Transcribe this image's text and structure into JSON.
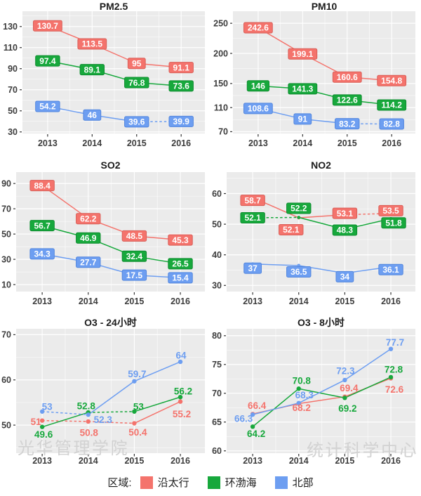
{
  "colors": {
    "red": {
      "fill": "#F4736C",
      "stroke": "#D95F58"
    },
    "green": {
      "fill": "#17A83C",
      "stroke": "#0E8C2F"
    },
    "blue": {
      "fill": "#6D9EF1",
      "stroke": "#5286DE"
    }
  },
  "legend": {
    "title": "区域:",
    "position": "bottom",
    "items": [
      {
        "label": "沿太行",
        "color": "red"
      },
      {
        "label": "环渤海",
        "color": "green"
      },
      {
        "label": "北部",
        "color": "blue"
      }
    ]
  },
  "watermarks": [
    {
      "text": "光华管理学院",
      "position": "bottom-left"
    },
    {
      "text": "统计科学中心",
      "position": "bottom-right"
    }
  ],
  "chart_data": [
    {
      "type": "line",
      "title": "PM2.5",
      "xlabel": "",
      "ylabel": "",
      "categories": [
        "2013",
        "2014",
        "2015",
        "2016"
      ],
      "yticks": [
        30,
        50,
        70,
        90,
        110,
        130
      ],
      "ylim": [
        28.5,
        144.5
      ],
      "grid": true,
      "label_style": "box",
      "series": [
        {
          "name": "沿太行",
          "color": "red",
          "values": [
            130.7,
            113.5,
            95,
            91.1
          ],
          "dashed_segments": [
            false,
            false,
            false
          ],
          "label_offsets": [
            [
              0,
              0
            ],
            [
              0,
              0
            ],
            [
              0,
              0
            ],
            [
              0,
              0
            ]
          ]
        },
        {
          "name": "环渤海",
          "color": "green",
          "values": [
            97.4,
            89.1,
            76.8,
            73.6
          ],
          "dashed_segments": [
            false,
            false,
            false
          ],
          "label_offsets": [
            [
              0,
              0
            ],
            [
              0,
              0
            ],
            [
              0,
              0
            ],
            [
              0,
              0
            ]
          ]
        },
        {
          "name": "北部",
          "color": "blue",
          "values": [
            54.2,
            46,
            39.6,
            39.9
          ],
          "dashed_segments": [
            false,
            false,
            true
          ],
          "label_offsets": [
            [
              0,
              0
            ],
            [
              0,
              0
            ],
            [
              0,
              0
            ],
            [
              0,
              0
            ]
          ]
        }
      ]
    },
    {
      "type": "line",
      "title": "PM10",
      "xlabel": "",
      "ylabel": "",
      "categories": [
        "2013",
        "2014",
        "2015",
        "2016"
      ],
      "yticks": [
        70,
        110,
        150,
        200,
        250
      ],
      "ylim": [
        67,
        270
      ],
      "grid": true,
      "label_style": "box",
      "series": [
        {
          "name": "沿太行",
          "color": "red",
          "values": [
            242.6,
            199.1,
            160.6,
            154.8
          ],
          "dashed_segments": [
            false,
            false,
            false
          ],
          "label_offsets": [
            [
              0,
              0
            ],
            [
              0,
              0
            ],
            [
              0,
              0
            ],
            [
              0,
              0
            ]
          ]
        },
        {
          "name": "环渤海",
          "color": "green",
          "values": [
            146,
            141.3,
            122.6,
            114.2
          ],
          "dashed_segments": [
            false,
            false,
            false
          ],
          "label_offsets": [
            [
              0,
              0
            ],
            [
              0,
              0
            ],
            [
              0,
              0
            ],
            [
              0,
              0
            ]
          ]
        },
        {
          "name": "北部",
          "color": "blue",
          "values": [
            108.6,
            91,
            83.2,
            82.8
          ],
          "dashed_segments": [
            false,
            false,
            true
          ],
          "label_offsets": [
            [
              0,
              0
            ],
            [
              0,
              0
            ],
            [
              0,
              0
            ],
            [
              0,
              0
            ]
          ]
        }
      ]
    },
    {
      "type": "line",
      "title": "SO2",
      "xlabel": "",
      "ylabel": "",
      "categories": [
        "2013",
        "2014",
        "2015",
        "2016"
      ],
      "yticks": [
        10,
        30,
        50,
        70,
        90
      ],
      "ylim": [
        4.5,
        99
      ],
      "grid": true,
      "label_style": "box",
      "series": [
        {
          "name": "沿太行",
          "color": "red",
          "values": [
            88.4,
            62.2,
            48.5,
            45.3
          ],
          "dashed_segments": [
            false,
            false,
            false
          ],
          "label_offsets": [
            [
              0,
              0
            ],
            [
              0,
              0
            ],
            [
              0,
              0
            ],
            [
              0,
              0
            ]
          ]
        },
        {
          "name": "环渤海",
          "color": "green",
          "values": [
            56.7,
            46.9,
            32.4,
            26.5
          ],
          "dashed_segments": [
            false,
            false,
            false
          ],
          "label_offsets": [
            [
              0,
              0
            ],
            [
              0,
              0
            ],
            [
              0,
              0
            ],
            [
              0,
              0
            ]
          ]
        },
        {
          "name": "北部",
          "color": "blue",
          "values": [
            34.3,
            27.7,
            17.5,
            15.4
          ],
          "dashed_segments": [
            false,
            false,
            false
          ],
          "label_offsets": [
            [
              0,
              0
            ],
            [
              0,
              0
            ],
            [
              0,
              0
            ],
            [
              0,
              0
            ]
          ]
        }
      ]
    },
    {
      "type": "line",
      "title": "NO2",
      "xlabel": "",
      "ylabel": "",
      "categories": [
        "2013",
        "2014",
        "2015",
        "2016"
      ],
      "yticks": [
        30,
        40,
        50,
        60
      ],
      "ylim": [
        28,
        67
      ],
      "grid": true,
      "label_style": "box",
      "series": [
        {
          "name": "沿太行",
          "color": "red",
          "values": [
            58.7,
            52.1,
            53.1,
            53.5
          ],
          "dashed_segments": [
            false,
            false,
            true
          ],
          "label_offsets": [
            [
              0,
              4
            ],
            [
              -11,
              17
            ],
            [
              0,
              -2
            ],
            [
              0,
              -4
            ]
          ]
        },
        {
          "name": "环渤海",
          "color": "green",
          "values": [
            52.1,
            52.2,
            48.3,
            51.8
          ],
          "dashed_segments": [
            true,
            false,
            false
          ],
          "label_offsets": [
            [
              0,
              0
            ],
            [
              0,
              -13
            ],
            [
              0,
              1
            ],
            [
              4,
              6
            ]
          ]
        },
        {
          "name": "北部",
          "color": "blue",
          "values": [
            37,
            36.5,
            34,
            36.1
          ],
          "dashed_segments": [
            false,
            false,
            false
          ],
          "label_offsets": [
            [
              0,
              6
            ],
            [
              0,
              9
            ],
            [
              0,
              5
            ],
            [
              0,
              4
            ]
          ]
        }
      ]
    },
    {
      "type": "line",
      "title": "O3 - 24小时",
      "xlabel": "",
      "ylabel": "",
      "categories": [
        "2013",
        "2014",
        "2015",
        "2016"
      ],
      "yticks": [
        50,
        60,
        70
      ],
      "ylim": [
        43.8,
        71.3
      ],
      "grid": true,
      "label_style": "text",
      "series": [
        {
          "name": "沿太行",
          "color": "red",
          "values": [
            51,
            50.8,
            50.4,
            55.2
          ],
          "dashed_segments": [
            true,
            true,
            false
          ],
          "label_offsets": [
            [
              -9,
              2
            ],
            [
              1,
              16
            ],
            [
              5,
              13
            ],
            [
              2,
              18
            ]
          ]
        },
        {
          "name": "环渤海",
          "color": "green",
          "values": [
            49.6,
            52.8,
            53,
            56.2
          ],
          "dashed_segments": [
            false,
            true,
            false
          ],
          "label_offsets": [
            [
              2,
              11
            ],
            [
              -3,
              -9
            ],
            [
              6,
              -7
            ],
            [
              4,
              -8
            ]
          ]
        },
        {
          "name": "北部",
          "color": "blue",
          "values": [
            53,
            52.3,
            59.7,
            64
          ],
          "dashed_segments": [
            true,
            false,
            false
          ],
          "label_offsets": [
            [
              7,
              -7
            ],
            [
              21,
              7
            ],
            [
              4,
              -10
            ],
            [
              1,
              -9
            ]
          ]
        }
      ]
    },
    {
      "type": "line",
      "title": "O3 - 8小时",
      "xlabel": "",
      "ylabel": "",
      "categories": [
        "2013",
        "2014",
        "2015",
        "2016"
      ],
      "yticks": [
        60,
        65,
        70,
        75,
        80
      ],
      "ylim": [
        59.6,
        81.2
      ],
      "grid": true,
      "label_style": "text",
      "series": [
        {
          "name": "沿太行",
          "color": "red",
          "values": [
            66.4,
            68.2,
            69.4,
            72.6
          ],
          "dashed_segments": [
            false,
            false,
            false
          ],
          "label_offsets": [
            [
              6,
              -12
            ],
            [
              4,
              6
            ],
            [
              6,
              -12
            ],
            [
              5,
              16
            ]
          ]
        },
        {
          "name": "环渤海",
          "color": "green",
          "values": [
            64.2,
            70.8,
            69.2,
            72.8
          ],
          "dashed_segments": [
            false,
            false,
            false
          ],
          "label_offsets": [
            [
              5,
              10
            ],
            [
              4,
              -11
            ],
            [
              4,
              15
            ],
            [
              4,
              -11
            ]
          ]
        },
        {
          "name": "北部",
          "color": "blue",
          "values": [
            66.3,
            68.3,
            72.3,
            77.7
          ],
          "dashed_segments": [
            false,
            false,
            false
          ],
          "label_offsets": [
            [
              -13,
              6
            ],
            [
              8,
              -11
            ],
            [
              1,
              -13
            ],
            [
              6,
              -9
            ]
          ]
        }
      ]
    }
  ]
}
